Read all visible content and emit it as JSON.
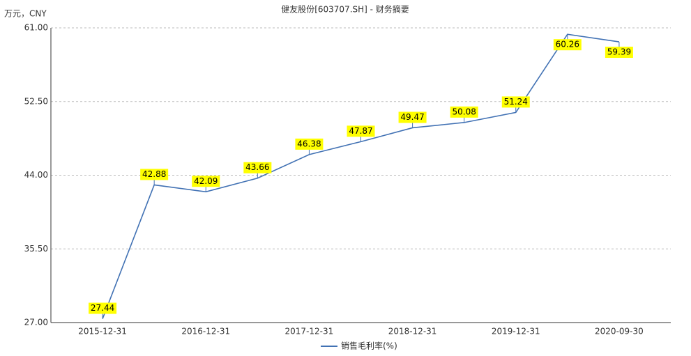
{
  "chart_data": {
    "type": "line",
    "title": "健友股份[603707.SH] - 财务摘要",
    "y_axis_label": "万元，CNY",
    "categories": [
      "2015-12-31",
      null,
      "2016-12-31",
      null,
      "2017-12-31",
      null,
      "2018-12-31",
      null,
      "2019-12-31",
      null,
      "2020-09-30"
    ],
    "series": [
      {
        "name": "销售毛利率(%)",
        "color": "#4272b4",
        "values": [
          27.44,
          42.88,
          42.09,
          43.66,
          46.38,
          47.87,
          49.47,
          50.08,
          51.24,
          60.26,
          59.39
        ]
      }
    ],
    "ylim": [
      27,
      61
    ],
    "yticks": [
      {
        "value": 27,
        "label": "27.00"
      },
      {
        "value": 35.5,
        "label": "35.50"
      },
      {
        "value": 44,
        "label": "44.00"
      },
      {
        "value": 52.5,
        "label": "52.50"
      },
      {
        "value": 61,
        "label": "61.00"
      }
    ],
    "grid": true,
    "legend": "bottom"
  }
}
